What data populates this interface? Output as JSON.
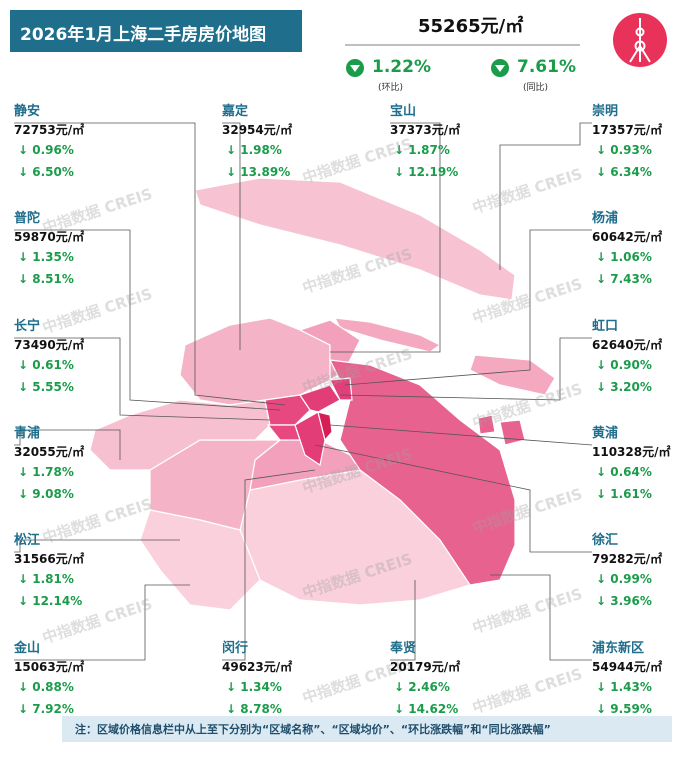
{
  "header": {
    "title": "2026年1月上海二手房房价地图",
    "price": "55265元/㎡",
    "mom": {
      "value": "1.22%",
      "label": "(环比)"
    },
    "yoy": {
      "value": "7.61%",
      "label": "(同比)"
    }
  },
  "districts": [
    {
      "name": "静安",
      "price": "72753元/㎡",
      "mom": "↓ 0.96%",
      "yoy": "↓ 6.50%"
    },
    {
      "name": "嘉定",
      "price": "32954元/㎡",
      "mom": "↓ 1.98%",
      "yoy": "↓ 13.89%"
    },
    {
      "name": "宝山",
      "price": "37373元/㎡",
      "mom": "↓ 1.87%",
      "yoy": "↓ 12.19%"
    },
    {
      "name": "崇明",
      "price": "17357元/㎡",
      "mom": "↓ 0.93%",
      "yoy": "↓ 6.34%"
    },
    {
      "name": "普陀",
      "price": "59870元/㎡",
      "mom": "↓ 1.35%",
      "yoy": "↓ 8.51%"
    },
    {
      "name": "杨浦",
      "price": "60642元/㎡",
      "mom": "↓ 1.06%",
      "yoy": "↓ 7.43%"
    },
    {
      "name": "长宁",
      "price": "73490元/㎡",
      "mom": "↓ 0.61%",
      "yoy": "↓ 5.55%"
    },
    {
      "name": "虹口",
      "price": "62640元/㎡",
      "mom": "↓ 0.90%",
      "yoy": "↓ 3.20%"
    },
    {
      "name": "青浦",
      "price": "32055元/㎡",
      "mom": "↓ 1.78%",
      "yoy": "↓ 9.08%"
    },
    {
      "name": "黄浦",
      "price": "110328元/㎡",
      "mom": "↓ 0.64%",
      "yoy": "↓ 1.61%"
    },
    {
      "name": "松江",
      "price": "31566元/㎡",
      "mom": "↓ 1.81%",
      "yoy": "↓ 12.14%"
    },
    {
      "name": "徐汇",
      "price": "79282元/㎡",
      "mom": "↓ 0.99%",
      "yoy": "↓ 3.96%"
    },
    {
      "name": "金山",
      "price": "15063元/㎡",
      "mom": "↓ 0.88%",
      "yoy": "↓ 7.92%"
    },
    {
      "name": "闵行",
      "price": "49623元/㎡",
      "mom": "↓ 1.34%",
      "yoy": "↓ 8.78%"
    },
    {
      "name": "奉贤",
      "price": "20179元/㎡",
      "mom": "↓ 2.46%",
      "yoy": "↓ 14.62%"
    },
    {
      "name": "浦东新区",
      "price": "54944元/㎡",
      "mom": "↓ 1.43%",
      "yoy": "↓ 9.59%"
    }
  ],
  "watermark": "中指数据 CREIS",
  "note": "注：区域价格信息栏中从上至下分别为“区域名称”、“区域均价”、“环比涨跌幅”和“同比涨跌幅”"
}
